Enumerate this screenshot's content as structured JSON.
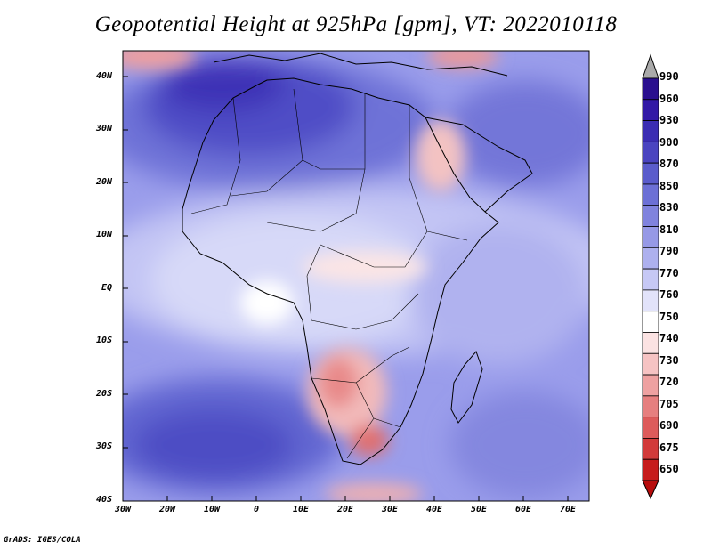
{
  "title": "Geopotential Height at 925hPa [gpm], VT: 2022010118",
  "credit": "GrADS: IGES/COLA",
  "map": {
    "variable": "Geopotential Height at 925hPa",
    "units": "gpm",
    "valid_time": "2022010118",
    "lon_labels": [
      "30W",
      "20W",
      "10W",
      "0",
      "10E",
      "20E",
      "30E",
      "40E",
      "50E",
      "60E",
      "70E"
    ],
    "lat_labels": [
      "40N",
      "30N",
      "20N",
      "10N",
      "EQ",
      "10S",
      "20S",
      "30S",
      "40S"
    ]
  },
  "colorbar": {
    "levels": [
      "990",
      "960",
      "930",
      "900",
      "870",
      "850",
      "830",
      "810",
      "790",
      "770",
      "760",
      "750",
      "740",
      "730",
      "720",
      "705",
      "690",
      "675",
      "650"
    ],
    "colors": [
      "#2a0f8f",
      "#3219a6",
      "#3b2db3",
      "#4a44c0",
      "#5a5ccc",
      "#6c70d6",
      "#8083de",
      "#9699e6",
      "#adb0ee",
      "#c6c8f5",
      "#e2e3fa",
      "#ffffff",
      "#fbe2e2",
      "#f6c3c3",
      "#eea1a1",
      "#e67f7f",
      "#dd5b5b",
      "#d23a3a",
      "#c61b1b",
      "#b80c0c"
    ]
  }
}
